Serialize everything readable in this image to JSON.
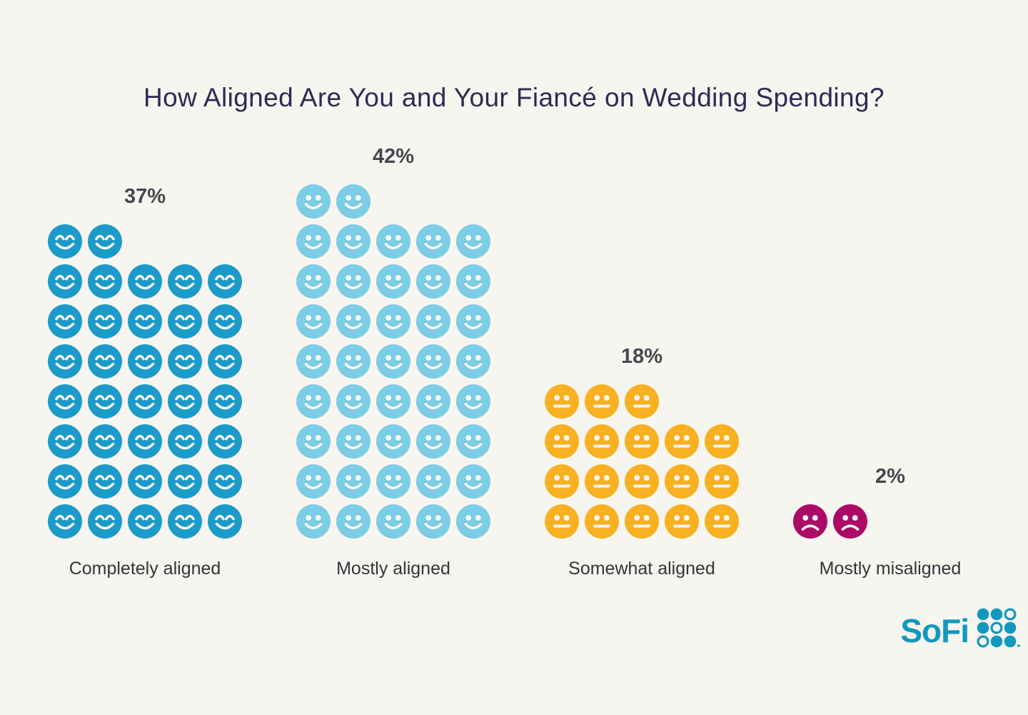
{
  "title": "How Aligned Are You and Your Fiancé on Wedding Spending?",
  "chart_data": {
    "type": "pictogram",
    "title": "How Aligned Are You and Your Fiancé on Wedding Spending?",
    "unit_per_icon": "1 face icon = 1 percentage point",
    "icons_per_row": 5,
    "categories": [
      "Completely aligned",
      "Mostly aligned",
      "Somewhat aligned",
      "Mostly misaligned"
    ],
    "values": [
      37,
      42,
      18,
      2
    ],
    "series": [
      {
        "label": "Completely aligned",
        "value": 37,
        "value_label": "37%",
        "icon": "happy-closed-eyes-face",
        "color": "#1C9BC8"
      },
      {
        "label": "Mostly aligned",
        "value": 42,
        "value_label": "42%",
        "icon": "happy-face",
        "color": "#7CCDE5"
      },
      {
        "label": "Somewhat aligned",
        "value": 18,
        "value_label": "18%",
        "icon": "neutral-face",
        "color": "#F9B021"
      },
      {
        "label": "Mostly misaligned",
        "value": 2,
        "value_label": "2%",
        "icon": "sad-face",
        "color": "#AC0A67"
      }
    ],
    "legend_position": "none",
    "grid": false
  },
  "logo": {
    "text": "SoFi",
    "color": "#1298BE",
    "dot_grid": [
      [
        1,
        1,
        0
      ],
      [
        1,
        0,
        1
      ],
      [
        0,
        1,
        1
      ]
    ]
  },
  "theme": {
    "background": "#F7F5F0",
    "title_color": "#2F2A54",
    "percent_color": "#47474F",
    "label_color": "#34343B",
    "icon_feature_color": "#F9F7F3"
  }
}
